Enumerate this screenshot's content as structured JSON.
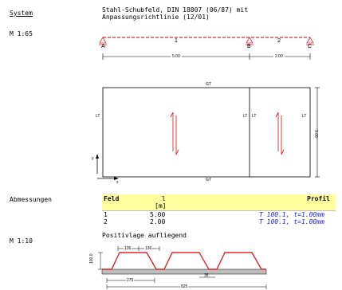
{
  "header": {
    "section": "System",
    "title_line1": "Stahl-Schubfeld, DIN 18807 (06/87) mit",
    "title_line2": "Anpassungsrichtlinie (12/01)"
  },
  "scales": {
    "system": "M 1:65",
    "profile": "M 1:10"
  },
  "beam": {
    "supports": [
      "A",
      "B",
      "C"
    ],
    "spans": [
      "1",
      "2"
    ],
    "dims": [
      "5.00",
      "2.00"
    ]
  },
  "panel": {
    "top_label": "GT",
    "bottom_label": "GT",
    "side_labels": [
      "LT",
      "LT",
      "LT",
      "LT"
    ],
    "height_dim": "3.00",
    "axis_x": "x",
    "axis_y": "y"
  },
  "abmessungen": {
    "section": "Abmessungen",
    "col_feld": "Feld",
    "col_l": "l",
    "col_l_unit": "[m]",
    "col_profil": "Profil",
    "rows": [
      {
        "feld": "1",
        "l": "5.00",
        "profil": "T 100.1, t=1.00mm"
      },
      {
        "feld": "2",
        "l": "2.00",
        "profil": "T 100.1, t=1.00mm"
      }
    ]
  },
  "profile_section": {
    "title": "Positivlage aufliegend",
    "dims": {
      "top1": "136",
      "top2": "136",
      "height": "100.0",
      "rib": "275",
      "web": "38",
      "total": "825"
    }
  },
  "colors": {
    "highlight": "#ffffa0",
    "red": "#e0262e",
    "blue": "#1a1ae6",
    "gray": "#bdbdbd"
  }
}
